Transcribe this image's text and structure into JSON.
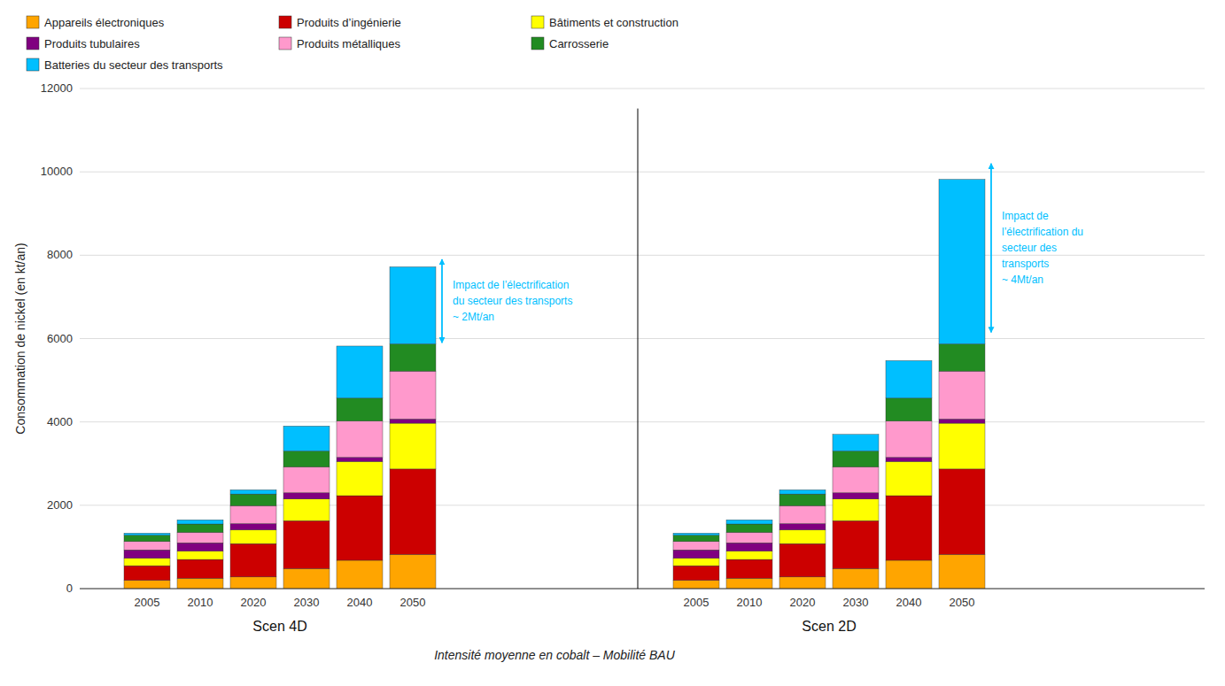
{
  "chart_data": {
    "type": "bar",
    "stacked": true,
    "ylabel": "Consommation de nickel (en kt/an)",
    "xlabel": "Intensité moyenne en cobalt – Mobilité BAU",
    "group_labels": [
      "Scen 4D",
      "Scen 2D"
    ],
    "categories": [
      "2005",
      "2010",
      "2020",
      "2030",
      "2040",
      "2050",
      "2005",
      "2010",
      "2020",
      "2030",
      "2040",
      "2050"
    ],
    "series": [
      {
        "name": "Appareils électroniques",
        "color": "#FFA500",
        "values": [
          200,
          250,
          280,
          480,
          680,
          820,
          200,
          250,
          280,
          480,
          680,
          820
        ]
      },
      {
        "name": "Produits d’ingénierie",
        "color": "#CC0000",
        "values": [
          350,
          450,
          800,
          1150,
          1550,
          2050,
          350,
          450,
          800,
          1150,
          1550,
          2050
        ]
      },
      {
        "name": "Bâtiments et construction",
        "color": "#FFFF00",
        "values": [
          180,
          200,
          330,
          520,
          820,
          1100,
          180,
          200,
          330,
          520,
          820,
          1100
        ]
      },
      {
        "name": "Produits tubulaires",
        "color": "#800080",
        "values": [
          200,
          200,
          150,
          150,
          100,
          100,
          200,
          200,
          150,
          150,
          100,
          100
        ]
      },
      {
        "name": "Produits métalliques",
        "color": "#FF99CC",
        "values": [
          200,
          250,
          430,
          620,
          870,
          1150,
          200,
          250,
          430,
          620,
          870,
          1150
        ]
      },
      {
        "name": "Carrosserie",
        "color": "#228B22",
        "values": [
          150,
          200,
          280,
          380,
          550,
          650,
          150,
          200,
          280,
          380,
          550,
          650
        ]
      },
      {
        "name": "Batteries du secteur des transports",
        "color": "#00BFFF",
        "values": [
          50,
          100,
          100,
          600,
          1250,
          1850,
          50,
          100,
          100,
          400,
          900,
          3950
        ]
      }
    ],
    "ylim": [
      0,
      12000
    ],
    "yticks": [
      0,
      2000,
      4000,
      6000,
      8000,
      10000,
      12000
    ],
    "grid": true,
    "legend": "upper left",
    "annotations": [
      {
        "text": "Impact de l’électrification\ndu secteur des transports\n~ 2Mt/an",
        "from": 5900,
        "to": 7900,
        "color": "#00BFFF"
      },
      {
        "text": "Impact de\nl’électrification du\nsecteur des\ntransports\n~ 4Mt/an",
        "from": 6150,
        "to": 10200,
        "color": "#00BFFF"
      }
    ]
  }
}
